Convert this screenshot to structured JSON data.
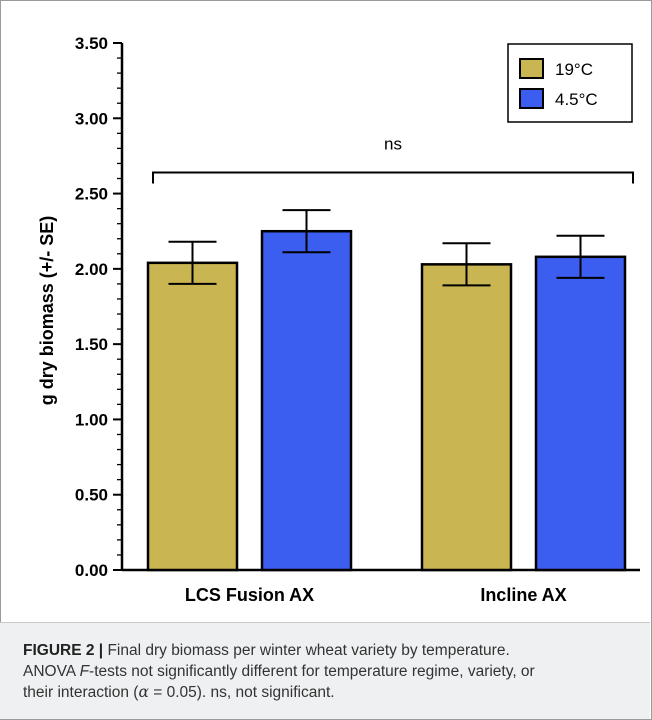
{
  "chart_data": {
    "type": "bar",
    "title": "",
    "ylabel": "g dry biomass (+/- SE)",
    "xlabel": "",
    "ylim": [
      0,
      3.5
    ],
    "yticks": [
      "0.00",
      "0.50",
      "1.00",
      "1.50",
      "2.00",
      "2.50",
      "3.00",
      "3.50"
    ],
    "categories": [
      "LCS Fusion AX",
      "Incline AX"
    ],
    "series": [
      {
        "name": "19°C",
        "color": "#c9b552",
        "values": [
          2.04,
          2.03
        ],
        "errors": [
          0.14,
          0.14
        ]
      },
      {
        "name": "4.5°C",
        "color": "#3b5df0",
        "values": [
          2.25,
          2.08
        ],
        "errors": [
          0.14,
          0.14
        ]
      }
    ],
    "legend_position": "top-right",
    "annotation": {
      "text": "ns",
      "y": 2.64
    },
    "grid": false
  },
  "caption": {
    "figure_label": "FIGURE 2 |",
    "line1_text": " Final dry biomass per winter wheat variety by temperature.",
    "line2_pre": "ANOVA ",
    "line2_f": "F",
    "line2_post": "-tests not significantly different for temperature regime, variety, or",
    "line3_pre": "their interaction (",
    "line3_alpha": "α",
    "line3_eq": " = 0.05). ns, not significant."
  }
}
